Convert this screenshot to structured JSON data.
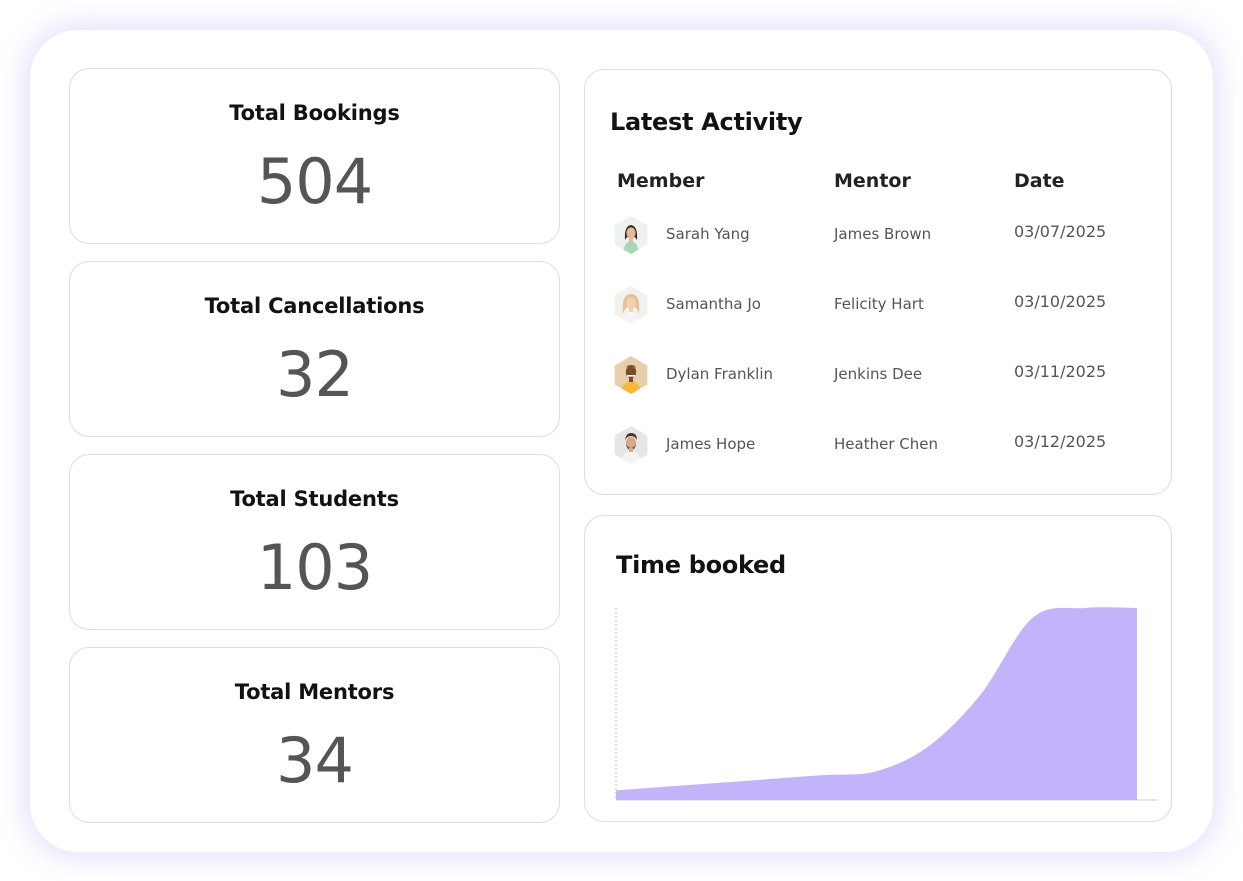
{
  "stats": [
    {
      "label": "Total Bookings",
      "value": "504"
    },
    {
      "label": "Total Cancellations",
      "value": "32"
    },
    {
      "label": "Total Students",
      "value": "103"
    },
    {
      "label": "Total Mentors",
      "value": "34"
    }
  ],
  "activity": {
    "title": "Latest Activity",
    "columns": {
      "member": "Member",
      "mentor": "Mentor",
      "date": "Date"
    },
    "rows": [
      {
        "member": "Sarah Yang",
        "mentor": "James Brown",
        "date": "03/07/2025",
        "avatar": "avatar-woman-green-top"
      },
      {
        "member": "Samantha Jo",
        "mentor": "Felicity Hart",
        "date": "03/10/2025",
        "avatar": "avatar-woman-blonde"
      },
      {
        "member": "Dylan Franklin",
        "mentor": "Jenkins Dee",
        "date": "03/11/2025",
        "avatar": "avatar-man-yellow-shirt"
      },
      {
        "member": "James Hope",
        "mentor": "Heather Chen",
        "date": "03/12/2025",
        "avatar": "avatar-man-beard"
      }
    ]
  },
  "chart": {
    "title": "Time booked"
  },
  "chart_data": {
    "type": "area",
    "title": "Time booked",
    "xlabel": "",
    "ylabel": "",
    "x": [
      0,
      1,
      2,
      3,
      4,
      5,
      6,
      7,
      8,
      9,
      10
    ],
    "values": [
      0.05,
      0.07,
      0.09,
      0.11,
      0.13,
      0.15,
      0.28,
      0.55,
      0.95,
      1.0,
      1.0
    ],
    "ylim": [
      0,
      1
    ],
    "grid": false,
    "fill_color": "#c2b3fb"
  },
  "colors": {
    "accent": "#c2b3fb",
    "border": "#dddde3",
    "heading": "#121212",
    "value": "#555555"
  }
}
